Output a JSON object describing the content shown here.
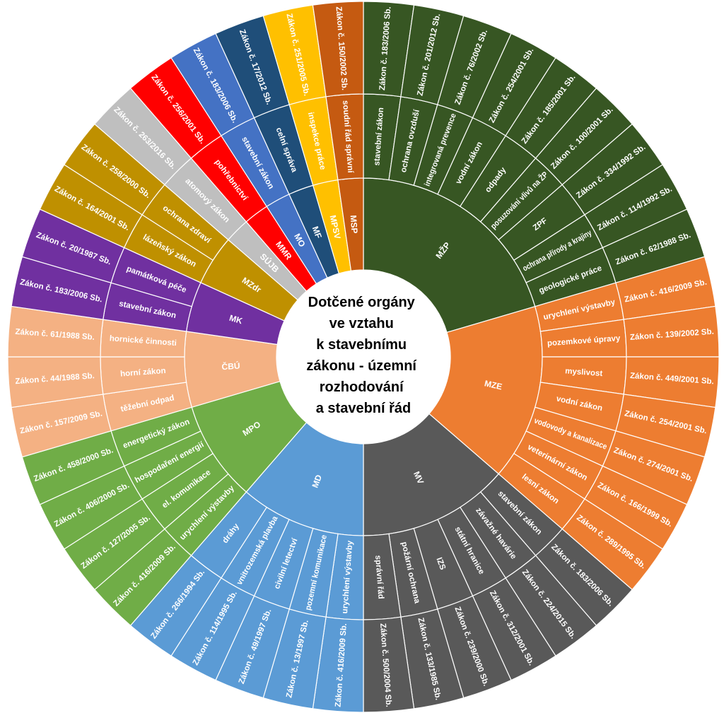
{
  "chart_data": {
    "type": "sunburst",
    "center_label_lines": [
      "Dotčené orgány",
      "ve vztahu",
      "k stavebnímu",
      "zákonu - územní",
      "rozhodování",
      "a stavební řád"
    ],
    "groups": [
      {
        "name": "MŽP",
        "color": "#375623",
        "items": [
          {
            "topic": "stavební zákon",
            "law": "Zákon č. 183/2006 Sb."
          },
          {
            "topic": "ochrana ovzduší",
            "law": "Zákon č. 201/2012 Sb."
          },
          {
            "topic": "integrovaná prevence",
            "law": "Zákon č. 76/2002 Sb."
          },
          {
            "topic": "vodní zákon",
            "law": "Zákon č. 254/2001 Sb."
          },
          {
            "topic": "odpady",
            "law": "Zákon č. 185/2001 Sb."
          },
          {
            "topic": "posuzování vlivů na ŽP",
            "law": "Zákon č. 100/2001 Sb."
          },
          {
            "topic": "ZPF",
            "law": "Zákon č. 334/1992 Sb."
          },
          {
            "topic": "ochrana přírody a krajiny",
            "law": "Zákon č. 114/1992 Sb."
          },
          {
            "topic": "geologické práce",
            "law": "Zákon č. 62/1988 Sb."
          }
        ]
      },
      {
        "name": "MZE",
        "color": "#ed7d31",
        "items": [
          {
            "topic": "urychlení výstavby",
            "law": "Zákon č. 416/2009 Sb."
          },
          {
            "topic": "pozemkové úpravy",
            "law": "Zákon č. 139/2002 Sb."
          },
          {
            "topic": "myslivost",
            "law": "Zákon č. 449/2001 Sb."
          },
          {
            "topic": "vodní zákon",
            "law": "Zákon č. 254/2001 Sb."
          },
          {
            "topic": "vodovody a kanalizace",
            "law": "Zákon č. 274/2001 Sb."
          },
          {
            "topic": "veterinární zákon",
            "law": "Zákon č. 166/1999 Sb."
          },
          {
            "topic": "lesní zákon",
            "law": "Zákon č. 289/1995 Sb."
          }
        ]
      },
      {
        "name": "MV",
        "color": "#595959",
        "items": [
          {
            "topic": "stavební zákon",
            "law": "Zákon č. 183/2006 Sb."
          },
          {
            "topic": "závažné havárie",
            "law": "Zákon č. 224/2015 Sb."
          },
          {
            "topic": "státní hranice",
            "law": "Zákon č. 312/2001 Sb."
          },
          {
            "topic": "IZS",
            "law": "Zákon č. 239/2000 Sb."
          },
          {
            "topic": "požární ochrana",
            "law": "Zákon č. 133/1985 Sb."
          },
          {
            "topic": "správní řád",
            "law": "Zákon č. 500/2004 Sb."
          }
        ]
      },
      {
        "name": "MD",
        "color": "#5b9bd5",
        "items": [
          {
            "topic": "urychlení výstavby",
            "law": "Zákon č. 416/2009 Sb."
          },
          {
            "topic": "pozemní komunikace",
            "law": "Zákon č. 13/1997 Sb."
          },
          {
            "topic": "civilní letectví",
            "law": "Zákon č. 49/1997 Sb."
          },
          {
            "topic": "vnitrozemská plavba",
            "law": "Zákon č. 114/1995 Sb."
          },
          {
            "topic": "dráhy",
            "law": "Zákon č. 266/1994 Sb."
          }
        ]
      },
      {
        "name": "MPO",
        "color": "#70ad47",
        "items": [
          {
            "topic": "urychlení výstavby",
            "law": "Zákon č. 416/2009 Sb."
          },
          {
            "topic": "el. komunikace",
            "law": "Zákon č. 127/2005 Sb."
          },
          {
            "topic": "hospodaření energií",
            "law": "Zákon č. 406/2000 Sb."
          },
          {
            "topic": "energetický zákon",
            "law": "Zákon č. 458/2000 Sb."
          }
        ]
      },
      {
        "name": "ČBÚ",
        "color": "#f4b183",
        "items": [
          {
            "topic": "těžební odpad",
            "law": "Zákon č. 157/2009 Sb."
          },
          {
            "topic": "horní zákon",
            "law": "Zákon č. 44/1988 Sb."
          },
          {
            "topic": "hornické činnosti",
            "law": "Zákon č. 61/1988 Sb."
          }
        ]
      },
      {
        "name": "MK",
        "color": "#7030a0",
        "items": [
          {
            "topic": "stavební zákon",
            "law": "Zákon č. 183/2006 Sb."
          },
          {
            "topic": "památková péče",
            "law": "Zákon č. 20/1987 Sb."
          }
        ]
      },
      {
        "name": "MZdr",
        "color": "#bf9000",
        "items": [
          {
            "topic": "lázeňský zákon",
            "law": "Zákon č. 164/2001 Sb."
          },
          {
            "topic": "ochrana zdraví",
            "law": "Zákon č. 258/2000 Sb."
          }
        ]
      },
      {
        "name": "SÚJB",
        "color": "#bfbfbf",
        "items": [
          {
            "topic": "atomový zákon",
            "law": "Zákon č. 263/2016 Sb."
          }
        ]
      },
      {
        "name": "MMR",
        "color": "#ff0000",
        "items": [
          {
            "topic": "pohřebnictví",
            "law": "Zákon č. 256/2001 Sb."
          }
        ]
      },
      {
        "name": "MO",
        "color": "#4472c4",
        "items": [
          {
            "topic": "stavební zákon",
            "law": "Zákon č. 183/2006 Sb."
          }
        ]
      },
      {
        "name": "MF",
        "color": "#1f4e79",
        "items": [
          {
            "topic": "celní správa",
            "law": "Zákon č. 17/2012 Sb."
          }
        ]
      },
      {
        "name": "MPSV",
        "color": "#ffc000",
        "items": [
          {
            "topic": "inspekce práce",
            "law": "Zákon č. 251/2005 Sb."
          }
        ]
      },
      {
        "name": "MSP",
        "color": "#c55a11",
        "items": [
          {
            "topic": "soudní řád správní",
            "law": "Zákon č. 150/2002 Sb."
          }
        ]
      }
    ]
  }
}
